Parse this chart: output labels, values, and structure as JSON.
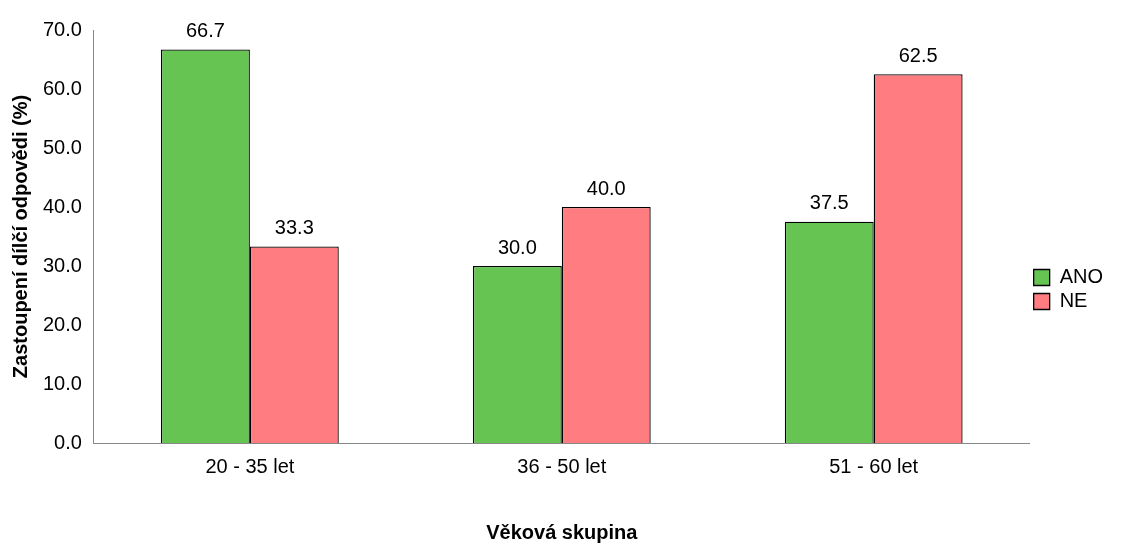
{
  "chart_data": {
    "type": "bar",
    "xlabel": "Věková skupina",
    "ylabel": "Zastoupení dílčí odpovědi (%)",
    "categories": [
      "20 - 35 let",
      "36 - 50 let",
      "51 - 60 let"
    ],
    "series": [
      {
        "name": "ANO",
        "color": "#66c452",
        "values": [
          66.7,
          30.0,
          37.5
        ],
        "value_labels": [
          "66.7",
          "30.0",
          "37.5"
        ]
      },
      {
        "name": "NE",
        "color": "#ff7c80",
        "values": [
          33.3,
          40.0,
          62.5
        ],
        "value_labels": [
          "33.3",
          "40.0",
          "62.5"
        ]
      }
    ],
    "ylim": [
      0,
      70
    ],
    "yticks": [
      {
        "value": 0,
        "label": "0.0"
      },
      {
        "value": 10,
        "label": "10.0"
      },
      {
        "value": 20,
        "label": "20.0"
      },
      {
        "value": 30,
        "label": "30.0"
      },
      {
        "value": 40,
        "label": "40.0"
      },
      {
        "value": 50,
        "label": "50.0"
      },
      {
        "value": 60,
        "label": "60.0"
      },
      {
        "value": 70,
        "label": "70.0"
      }
    ],
    "grid": false,
    "legend": "right"
  }
}
